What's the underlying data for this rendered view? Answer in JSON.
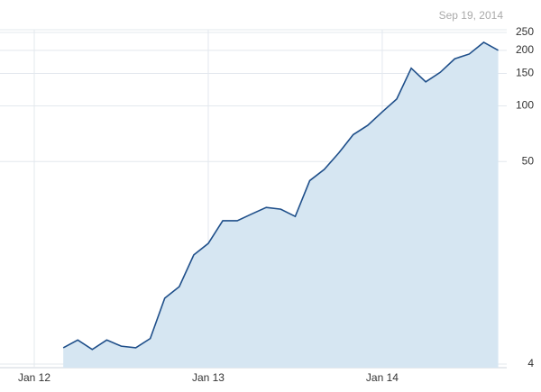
{
  "chart_data": {
    "type": "area",
    "date_label": "Sep 19, 2014",
    "x": [
      "2012-03",
      "2012-04",
      "2012-05",
      "2012-06",
      "2012-07",
      "2012-08",
      "2012-09",
      "2012-10",
      "2012-11",
      "2012-12",
      "2013-01",
      "2013-02",
      "2013-03",
      "2013-04",
      "2013-05",
      "2013-06",
      "2013-07",
      "2013-08",
      "2013-09",
      "2013-10",
      "2013-11",
      "2013-12",
      "2014-01",
      "2014-02",
      "2014-03",
      "2014-04",
      "2014-05",
      "2014-06",
      "2014-07",
      "2014-08",
      "2014-09"
    ],
    "series": [
      {
        "color": "#1f4f8a",
        "fill": "#d6e6f2",
        "values": [
          4.9,
          5.4,
          4.8,
          5.4,
          5.0,
          4.9,
          5.5,
          9.1,
          10.5,
          15.6,
          18.0,
          23.9,
          23.9,
          26.0,
          28.2,
          27.6,
          25.2,
          39.4,
          45.3,
          55.6,
          69.9,
          78.5,
          92.8,
          109,
          160,
          135,
          152,
          180,
          191,
          221,
          200
        ]
      }
    ],
    "xlim": [
      "2012-01",
      "2014-09"
    ],
    "xticks": [
      {
        "value": "2012-01",
        "label": "Jan 12"
      },
      {
        "value": "2013-01",
        "label": "Jan 13"
      },
      {
        "value": "2014-01",
        "label": "Jan 14"
      }
    ],
    "ylim": [
      4,
      250
    ],
    "yticks": [
      4,
      50,
      100,
      150,
      200,
      250
    ],
    "log_scale": true,
    "grid": true
  }
}
